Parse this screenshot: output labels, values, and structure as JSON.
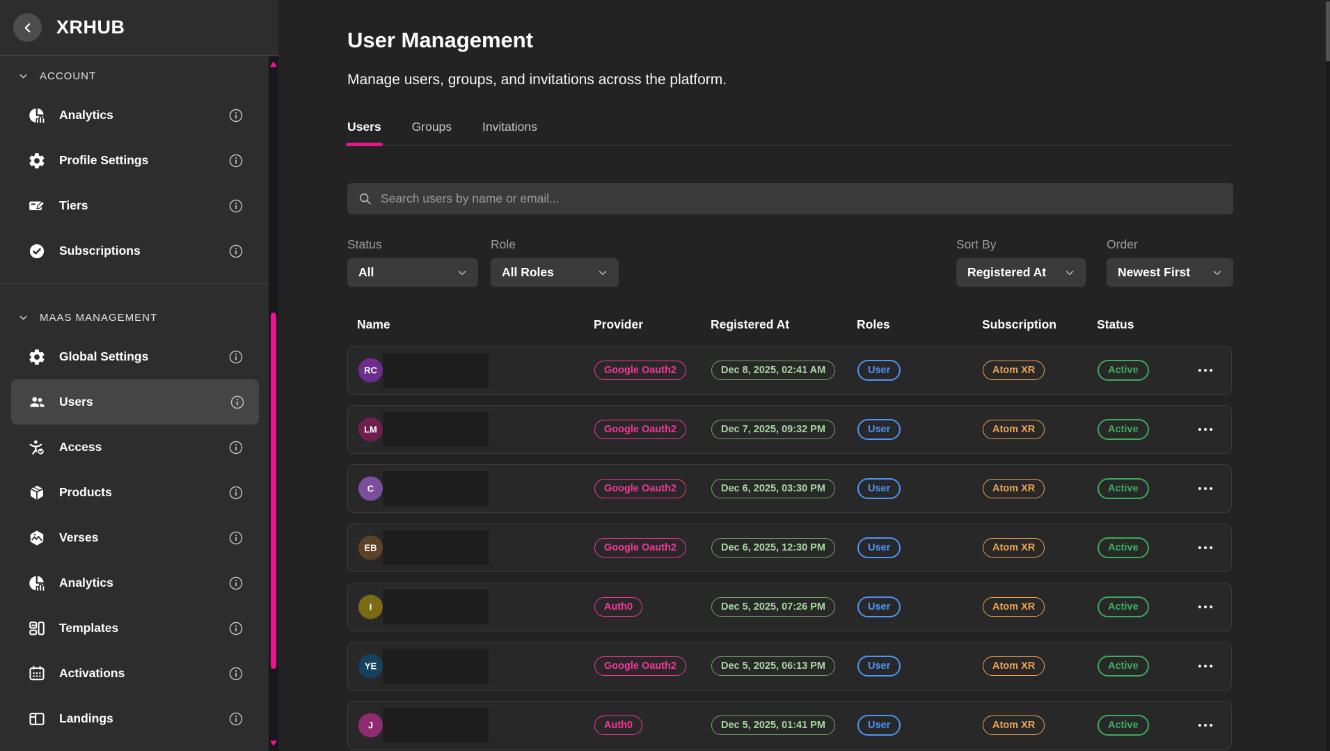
{
  "app": {
    "brand": "XRHUB"
  },
  "colors": {
    "accent_pink": "#ee1391",
    "provider_pink": "#f5369b",
    "date_green_light": "#a8d9a2",
    "role_blue": "#4f94f7",
    "subscription_orange": "#eda355",
    "status_green": "#3cab5c"
  },
  "sidebar": {
    "sections": [
      {
        "label": "ACCOUNT",
        "items": [
          {
            "label": "Analytics",
            "icon": "analytics-icon"
          },
          {
            "label": "Profile Settings",
            "icon": "gear-icon"
          },
          {
            "label": "Tiers",
            "icon": "card-edit-icon"
          },
          {
            "label": "Subscriptions",
            "icon": "check-circle-icon"
          }
        ]
      },
      {
        "label": "MAAS MANAGEMENT",
        "items": [
          {
            "label": "Global Settings",
            "icon": "gear-icon"
          },
          {
            "label": "Users",
            "icon": "users-icon",
            "selected": true
          },
          {
            "label": "Access",
            "icon": "access-icon"
          },
          {
            "label": "Products",
            "icon": "box-icon"
          },
          {
            "label": "Verses",
            "icon": "verses-icon"
          },
          {
            "label": "Analytics",
            "icon": "analytics-icon"
          },
          {
            "label": "Templates",
            "icon": "templates-icon"
          },
          {
            "label": "Activations",
            "icon": "calendar-icon"
          },
          {
            "label": "Landings",
            "icon": "landings-icon"
          }
        ]
      }
    ]
  },
  "header": {
    "title": "User Management",
    "subtitle": "Manage users, groups, and invitations across the platform."
  },
  "tabs": [
    {
      "label": "Users",
      "active": true
    },
    {
      "label": "Groups",
      "active": false
    },
    {
      "label": "Invitations",
      "active": false
    }
  ],
  "search": {
    "placeholder": "Search users by name or email..."
  },
  "filters": [
    {
      "label": "Status",
      "value": "All"
    },
    {
      "label": "Role",
      "value": "All Roles"
    },
    {
      "label": "Sort By",
      "value": "Registered At"
    },
    {
      "label": "Order",
      "value": "Newest First"
    }
  ],
  "table": {
    "columns": [
      "Name",
      "Provider",
      "Registered At",
      "Roles",
      "Subscription",
      "Status"
    ],
    "rows": [
      {
        "initials": "RC",
        "avatar_color": "#6d2d8f",
        "provider": "Google Oauth2",
        "registered_at": "Dec 8, 2025, 02:41 AM",
        "role": "User",
        "subscription": "Atom XR",
        "status": "Active"
      },
      {
        "initials": "LM",
        "avatar_color": "#6e1f4e",
        "provider": "Google Oauth2",
        "registered_at": "Dec 7, 2025, 09:32 PM",
        "role": "User",
        "subscription": "Atom XR",
        "status": "Active"
      },
      {
        "initials": "C",
        "avatar_color": "#7c4f9c",
        "provider": "Google Oauth2",
        "registered_at": "Dec 6, 2025, 03:30 PM",
        "role": "User",
        "subscription": "Atom XR",
        "status": "Active"
      },
      {
        "initials": "EB",
        "avatar_color": "#5d4228",
        "provider": "Google Oauth2",
        "registered_at": "Dec 6, 2025, 12:30 PM",
        "role": "User",
        "subscription": "Atom XR",
        "status": "Active"
      },
      {
        "initials": "I",
        "avatar_color": "#7a6a14",
        "provider": "Auth0",
        "registered_at": "Dec 5, 2025, 07:26 PM",
        "role": "User",
        "subscription": "Atom XR",
        "status": "Active"
      },
      {
        "initials": "YE",
        "avatar_color": "#16405f",
        "provider": "Google Oauth2",
        "registered_at": "Dec 5, 2025, 06:13 PM",
        "role": "User",
        "subscription": "Atom XR",
        "status": "Active"
      },
      {
        "initials": "J",
        "avatar_color": "#8f2b70",
        "provider": "Auth0",
        "registered_at": "Dec 5, 2025, 01:41 PM",
        "role": "User",
        "subscription": "Atom XR",
        "status": "Active"
      }
    ]
  }
}
